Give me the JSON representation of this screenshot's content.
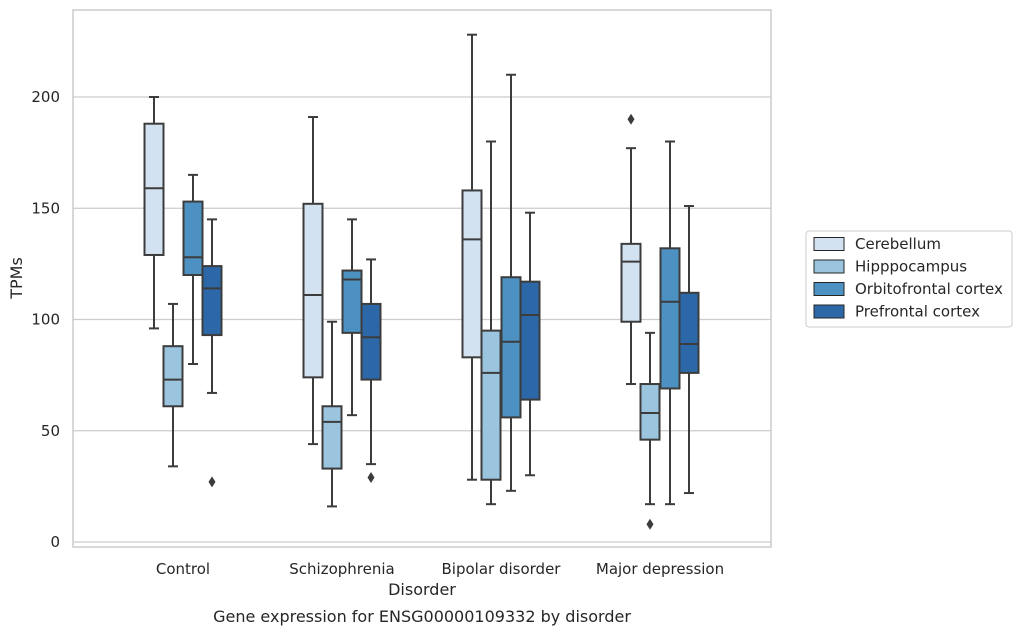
{
  "chart_data": {
    "type": "box",
    "xlabel": "Disorder",
    "ylabel": "TPMs",
    "caption": "Gene expression for ENSG00000109332 by disorder",
    "ylim": [
      -2,
      240
    ],
    "yticks": [
      0,
      50,
      100,
      150,
      200
    ],
    "grid": "horizontal",
    "legend_position": "right",
    "categories": [
      "Control",
      "Schizophrenia",
      "Bipolar disorder",
      "Major depression"
    ],
    "series": [
      {
        "name": "Cerebellum",
        "color": "#d3e2f1",
        "boxes": [
          {
            "whisker_low": 96,
            "q1": 129,
            "median": 159,
            "q3": 188,
            "whisker_high": 200,
            "outliers": []
          },
          {
            "whisker_low": 44,
            "q1": 74,
            "median": 111,
            "q3": 152,
            "whisker_high": 191,
            "outliers": []
          },
          {
            "whisker_low": 28,
            "q1": 83,
            "median": 136,
            "q3": 158,
            "whisker_high": 228,
            "outliers": []
          },
          {
            "whisker_low": 71,
            "q1": 99,
            "median": 126,
            "q3": 134,
            "whisker_high": 177,
            "outliers": [
              190
            ]
          }
        ]
      },
      {
        "name": "Hipppocampus",
        "color": "#9bc4de",
        "boxes": [
          {
            "whisker_low": 34,
            "q1": 61,
            "median": 73,
            "q3": 88,
            "whisker_high": 107,
            "outliers": []
          },
          {
            "whisker_low": 16,
            "q1": 33,
            "median": 54,
            "q3": 61,
            "whisker_high": 99,
            "outliers": []
          },
          {
            "whisker_low": 17,
            "q1": 28,
            "median": 76,
            "q3": 95,
            "whisker_high": 180,
            "outliers": []
          },
          {
            "whisker_low": 17,
            "q1": 46,
            "median": 58,
            "q3": 71,
            "whisker_high": 94,
            "outliers": [
              8
            ]
          }
        ]
      },
      {
        "name": "Orbitofrontal cortex",
        "color": "#4d90c2",
        "boxes": [
          {
            "whisker_low": 80,
            "q1": 120,
            "median": 128,
            "q3": 153,
            "whisker_high": 165,
            "outliers": []
          },
          {
            "whisker_low": 57,
            "q1": 94,
            "median": 118,
            "q3": 122,
            "whisker_high": 145,
            "outliers": []
          },
          {
            "whisker_low": 23,
            "q1": 56,
            "median": 90,
            "q3": 119,
            "whisker_high": 210,
            "outliers": []
          },
          {
            "whisker_low": 17,
            "q1": 69,
            "median": 108,
            "q3": 132,
            "whisker_high": 180,
            "outliers": []
          }
        ]
      },
      {
        "name": "Prefrontal cortex",
        "color": "#2c68a8",
        "boxes": [
          {
            "whisker_low": 67,
            "q1": 93,
            "median": 114,
            "q3": 124,
            "whisker_high": 145,
            "outliers": [
              27
            ]
          },
          {
            "whisker_low": 35,
            "q1": 73,
            "median": 92,
            "q3": 107,
            "whisker_high": 127,
            "outliers": [
              29
            ]
          },
          {
            "whisker_low": 30,
            "q1": 64,
            "median": 102,
            "q3": 117,
            "whisker_high": 148,
            "outliers": []
          },
          {
            "whisker_low": 22,
            "q1": 76,
            "median": 89,
            "q3": 112,
            "whisker_high": 151,
            "outliers": []
          }
        ]
      }
    ]
  }
}
